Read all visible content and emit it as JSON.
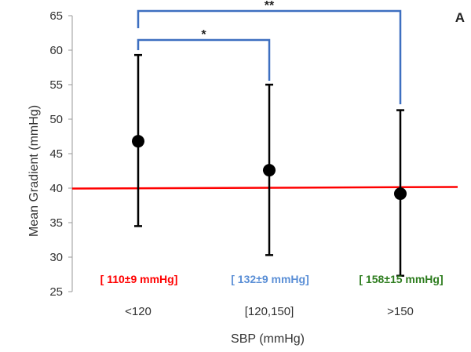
{
  "chart_data": {
    "type": "scatter",
    "panel_label": "A",
    "xlabel": "SBP (mmHg)",
    "ylabel": "Mean Gradient (mmHg)",
    "ylim": [
      25,
      65
    ],
    "yticks": [
      25,
      30,
      35,
      40,
      45,
      50,
      55,
      60,
      65
    ],
    "grid": false,
    "legend": "none",
    "categories": [
      "<120",
      "[120,150]",
      ">150"
    ],
    "series": [
      {
        "values": [
          46.8,
          42.6,
          39.2
        ],
        "error_low": [
          34.5,
          30.3,
          27.3
        ],
        "error_high": [
          59.3,
          55.0,
          51.3
        ],
        "color": "#000000"
      }
    ],
    "reference_line": {
      "y": 40,
      "color": "#ff0000"
    },
    "group_annotations": [
      {
        "category": "<120",
        "text": "[ 110±9 mmHg]",
        "color": "#ff0000"
      },
      {
        "category": "[120,150]",
        "text": "[ 132±9 mmHg]",
        "color": "#5b8fd6"
      },
      {
        "category": ">150",
        "text": "[ 158±15 mmHg]",
        "color": "#2e7d1f"
      }
    ],
    "significance": [
      {
        "from": "<120",
        "to": "[120,150]",
        "label": "*",
        "color": "#3d6fc0"
      },
      {
        "from": "<120",
        "to": ">150",
        "label": "**",
        "color": "#3d6fc0"
      }
    ]
  }
}
